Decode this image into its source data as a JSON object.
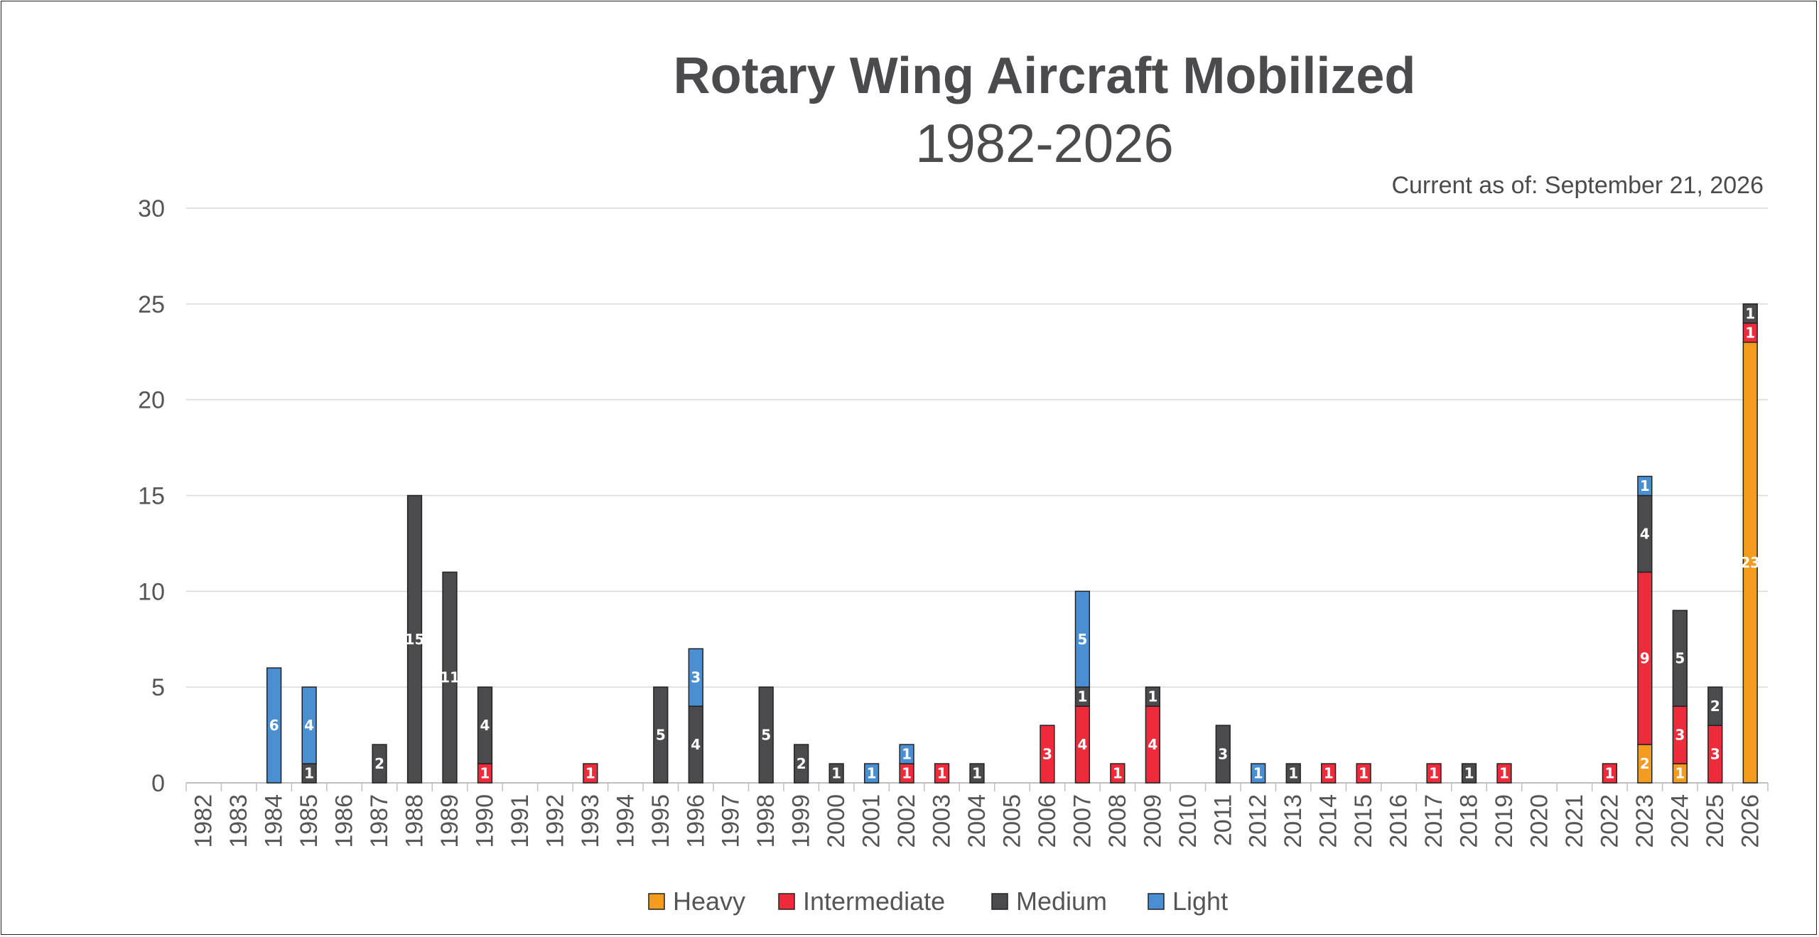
{
  "chart_data": {
    "type": "bar",
    "stacked": true,
    "title": "Rotary Wing Aircraft Mobilized",
    "subtitle": "1982-2026",
    "note": "Current as of: September 21, 2026",
    "xlabel": "",
    "ylabel": "",
    "ylim": [
      0,
      30
    ],
    "yticks": [
      0,
      5,
      10,
      15,
      20,
      25,
      30
    ],
    "grid": true,
    "legend_position": "bottom",
    "categories": [
      "1982",
      "1983",
      "1984",
      "1985",
      "1986",
      "1987",
      "1988",
      "1989",
      "1990",
      "1991",
      "1992",
      "1993",
      "1994",
      "1995",
      "1996",
      "1997",
      "1998",
      "1999",
      "2000",
      "2001",
      "2002",
      "2003",
      "2004",
      "2005",
      "2006",
      "2007",
      "2008",
      "2009",
      "2010",
      "2011",
      "2012",
      "2013",
      "2014",
      "2015",
      "2016",
      "2017",
      "2018",
      "2019",
      "2020",
      "2021",
      "2022",
      "2023",
      "2024",
      "2025",
      "2026"
    ],
    "series": [
      {
        "name": "Heavy",
        "color": "#f39c1f",
        "values": [
          0,
          0,
          0,
          0,
          0,
          0,
          0,
          0,
          0,
          0,
          0,
          0,
          0,
          0,
          0,
          0,
          0,
          0,
          0,
          0,
          0,
          0,
          0,
          0,
          0,
          0,
          0,
          0,
          0,
          0,
          0,
          0,
          0,
          0,
          0,
          0,
          0,
          0,
          0,
          0,
          0,
          2,
          1,
          0,
          23
        ],
        "labels": [
          null,
          null,
          null,
          null,
          null,
          null,
          null,
          null,
          null,
          null,
          null,
          null,
          null,
          null,
          null,
          null,
          null,
          null,
          null,
          null,
          null,
          null,
          null,
          null,
          null,
          null,
          null,
          null,
          null,
          null,
          null,
          null,
          null,
          null,
          null,
          null,
          null,
          null,
          null,
          null,
          null,
          "2",
          "1",
          null,
          "23"
        ]
      },
      {
        "name": "Intermediate",
        "color": "#ee2b3b",
        "values": [
          0,
          0,
          0,
          0,
          0,
          0,
          0,
          0,
          1,
          0,
          0,
          1,
          0,
          0,
          0,
          0,
          0,
          0,
          0,
          0,
          1,
          1,
          0,
          0,
          3,
          4,
          1,
          4,
          0,
          0,
          0,
          0,
          1,
          1,
          0,
          1,
          0,
          1,
          0,
          0,
          1,
          9,
          3,
          3,
          1
        ],
        "labels": [
          null,
          null,
          null,
          null,
          null,
          null,
          null,
          null,
          "1",
          null,
          null,
          "1",
          null,
          null,
          null,
          null,
          null,
          null,
          null,
          null,
          "1",
          "1",
          null,
          null,
          "3",
          "4",
          "1",
          "4",
          null,
          null,
          null,
          null,
          "1",
          "1",
          null,
          "1",
          null,
          "1",
          null,
          null,
          "1",
          "9",
          "3",
          "3",
          "1"
        ]
      },
      {
        "name": "Medium",
        "color": "#4b4b4d",
        "values": [
          0,
          0,
          0,
          1,
          0,
          2,
          15,
          11,
          4,
          0,
          0,
          0,
          0,
          5,
          4,
          0,
          5,
          2,
          1,
          0,
          0,
          0,
          1,
          0,
          0,
          1,
          0,
          1,
          0,
          3,
          0,
          1,
          0,
          0,
          0,
          0,
          1,
          0,
          0,
          0,
          0,
          4,
          5,
          2,
          1
        ],
        "labels": [
          null,
          null,
          null,
          "1",
          null,
          "2",
          "15",
          "11",
          "4",
          null,
          null,
          null,
          null,
          "5",
          "4",
          null,
          "5",
          "2",
          "1",
          null,
          null,
          null,
          "1",
          null,
          null,
          "1",
          null,
          "1",
          null,
          "3",
          null,
          "1",
          null,
          null,
          null,
          null,
          "1",
          null,
          null,
          null,
          null,
          "4",
          "5",
          "2",
          "1"
        ]
      },
      {
        "name": "Light",
        "color": "#4a8fd4",
        "values": [
          0,
          0,
          6,
          4,
          0,
          0,
          0,
          0,
          0,
          0,
          0,
          0,
          0,
          0,
          3,
          0,
          0,
          0,
          0,
          1,
          1,
          0,
          0,
          0,
          0,
          5,
          0,
          0,
          0,
          0,
          1,
          0,
          0,
          0,
          0,
          0,
          0,
          0,
          0,
          0,
          0,
          1,
          0,
          0,
          0
        ],
        "labels": [
          null,
          null,
          "6",
          "4",
          null,
          null,
          null,
          null,
          null,
          null,
          null,
          null,
          null,
          null,
          "3",
          null,
          null,
          null,
          null,
          "1",
          "1",
          null,
          null,
          null,
          null,
          "5",
          null,
          null,
          null,
          null,
          "1",
          null,
          null,
          null,
          null,
          null,
          null,
          null,
          null,
          null,
          null,
          "1",
          null,
          null,
          null
        ]
      }
    ]
  }
}
